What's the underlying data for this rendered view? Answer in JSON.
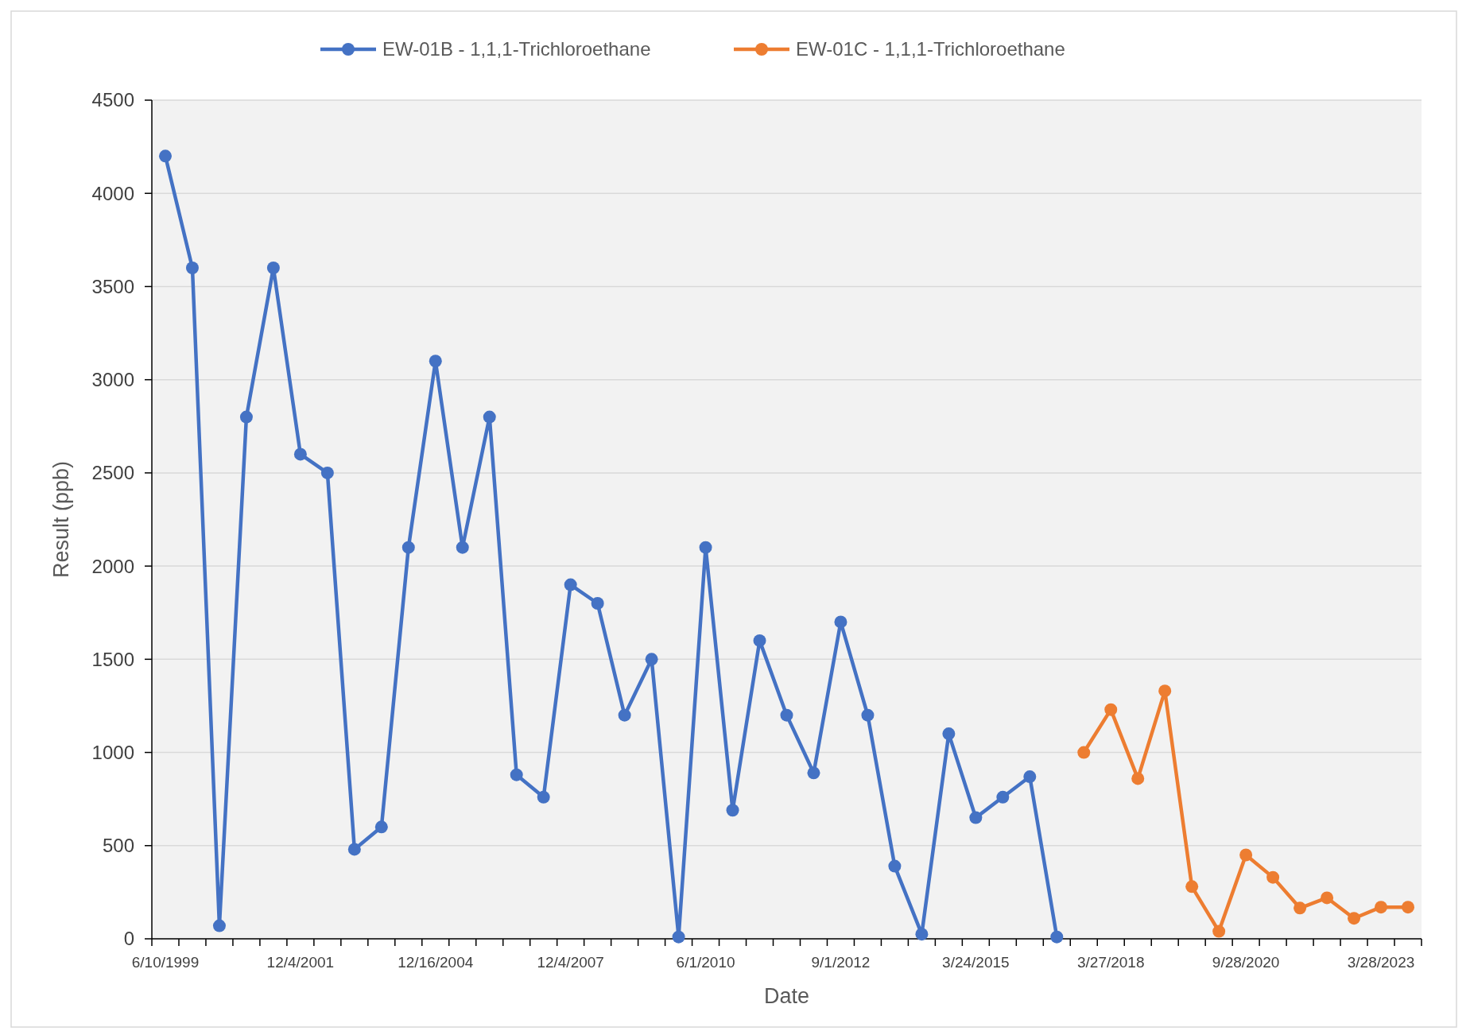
{
  "chart_data": {
    "type": "line",
    "xlabel": "Date",
    "ylabel": "Result (ppb)",
    "categories": [
      "6/10/1999",
      null,
      null,
      null,
      null,
      "12/4/2001",
      null,
      null,
      null,
      null,
      "12/16/2004",
      null,
      null,
      null,
      null,
      "12/4/2007",
      null,
      null,
      null,
      null,
      "6/1/2010",
      null,
      null,
      null,
      null,
      "9/1/2012",
      null,
      null,
      null,
      null,
      "3/24/2015",
      null,
      null,
      null,
      null,
      "3/27/2018",
      null,
      null,
      null,
      null,
      "9/28/2020",
      null,
      null,
      null,
      null,
      "3/28/2023",
      null
    ],
    "series": [
      {
        "name": "EW-01B - 1,1,1-Trichloroethane",
        "color": "#4472c4",
        "values": [
          4200,
          3600,
          70,
          2800,
          3600,
          2600,
          2500,
          480,
          600,
          2100,
          3100,
          2100,
          2800,
          880,
          760,
          1900,
          1800,
          1200,
          1500,
          10,
          2100,
          690,
          1600,
          1200,
          890,
          1700,
          1200,
          390,
          25,
          1100,
          650,
          760,
          870,
          10,
          null,
          null,
          null,
          null,
          null,
          null,
          null,
          null,
          null,
          null,
          null,
          null,
          null
        ]
      },
      {
        "name": "EW-01C - 1,1,1-Trichloroethane",
        "color": "#ed7d31",
        "values": [
          null,
          null,
          null,
          null,
          null,
          null,
          null,
          null,
          null,
          null,
          null,
          null,
          null,
          null,
          null,
          null,
          null,
          null,
          null,
          null,
          null,
          null,
          null,
          null,
          null,
          null,
          null,
          null,
          null,
          null,
          null,
          null,
          null,
          null,
          1000,
          1230,
          860,
          1330,
          280,
          40,
          450,
          330,
          165,
          220,
          110,
          170,
          170
        ]
      }
    ],
    "ylim": [
      0,
      4500
    ],
    "yticks": [
      0,
      500,
      1000,
      1500,
      2000,
      2500,
      3000,
      3500,
      4000,
      4500
    ],
    "grid": "y",
    "legend": "top",
    "marker": "circle",
    "line_style": "solid"
  }
}
